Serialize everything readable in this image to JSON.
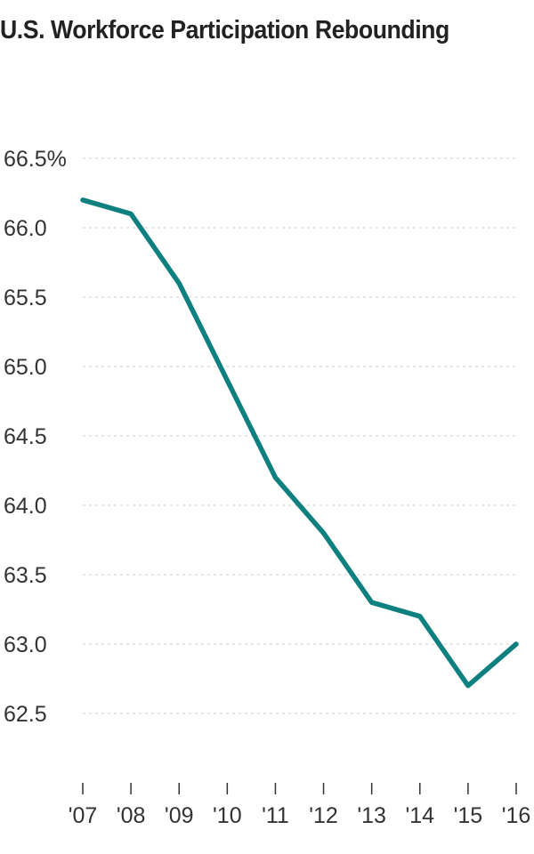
{
  "chart_data": {
    "type": "line",
    "title": "U.S. Workforce Participation Rebounding",
    "xlabel": "",
    "ylabel": "",
    "categories": [
      "'07",
      "'08",
      "'09",
      "'10",
      "'11",
      "'12",
      "'13",
      "'14",
      "'15",
      "'16"
    ],
    "series": [
      {
        "values": [
          66.2,
          66.1,
          65.6,
          64.9,
          64.2,
          63.8,
          63.3,
          63.2,
          62.7,
          63.0
        ]
      }
    ],
    "y_ticks": [
      {
        "value": 62.5,
        "label": "62.5"
      },
      {
        "value": 63.0,
        "label": "63.0"
      },
      {
        "value": 63.5,
        "label": "63.5"
      },
      {
        "value": 64.0,
        "label": "64.0"
      },
      {
        "value": 64.5,
        "label": "64.5"
      },
      {
        "value": 65.0,
        "label": "65.0"
      },
      {
        "value": 65.5,
        "label": "65.5"
      },
      {
        "value": 66.0,
        "label": "66.0"
      },
      {
        "value": 66.5,
        "label": "66.5%"
      }
    ],
    "ylim": [
      62.5,
      66.5
    ],
    "grid": true,
    "colors": {
      "line": "#0f8080",
      "grid": "#d6d6d6",
      "axis": "#333333"
    }
  }
}
